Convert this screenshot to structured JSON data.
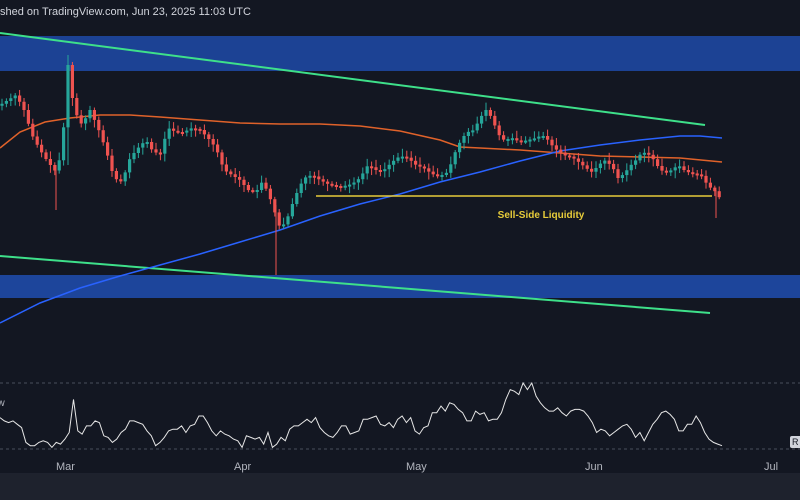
{
  "header": {
    "text": "shed on TradingView.com, Jun 23, 2025 11:03 UTC"
  },
  "oscillator": {
    "label_fragment": "ew",
    "price_tag_fragment": "R"
  },
  "colors": {
    "background": "#131722",
    "up_candle": "#26a69a",
    "down_candle": "#ef5350",
    "ma_orange": "#e0622a",
    "ma_blue": "#2962ff",
    "channel_green": "#3ee08a",
    "zone_blue": "#1f4aa8",
    "liquidity_line": "#e7cc3a",
    "rsi_line": "#e6e6e6"
  },
  "chart_data": {
    "type": "candlestick",
    "x_axis": {
      "ticks": [
        "Mar",
        "Apr",
        "May",
        "Jun",
        "Jul"
      ]
    },
    "annotations": [
      {
        "text": "Sell-Side Liquidity",
        "kind": "horizontal-level"
      }
    ],
    "zones": [
      "upper-supply-zone",
      "lower-demand-zone"
    ],
    "indicators": [
      "moving-average-orange",
      "moving-average-blue",
      "descending-channel",
      "oscillator"
    ],
    "oscillator": {
      "values": [
        49,
        47,
        46,
        47,
        45,
        43,
        34,
        32,
        32,
        34,
        35,
        34,
        31,
        34,
        33,
        36,
        40,
        60,
        41,
        39,
        44,
        44,
        47,
        46,
        38,
        37,
        34,
        36,
        40,
        42,
        47,
        47,
        46,
        45,
        41,
        38,
        32,
        34,
        37,
        41,
        42,
        42,
        44,
        40,
        44,
        45,
        50,
        50,
        46,
        41,
        38,
        41,
        39,
        38,
        36,
        35,
        31,
        38,
        37,
        36,
        37,
        33,
        40,
        31,
        33,
        37,
        35,
        42,
        44,
        44,
        46,
        48,
        46,
        49,
        43,
        40,
        38,
        37,
        40,
        44,
        44,
        39,
        40,
        41,
        48,
        48,
        49,
        50,
        45,
        44,
        46,
        43,
        48,
        50,
        46,
        49,
        41,
        39,
        43,
        44,
        52,
        52,
        56,
        53,
        58,
        57,
        54,
        52,
        47,
        47,
        53,
        51,
        52,
        47,
        48,
        48,
        52,
        60,
        66,
        65,
        63,
        70,
        66,
        70,
        62,
        58,
        55,
        53,
        53,
        55,
        52,
        50,
        53,
        54,
        54,
        53,
        50,
        46,
        40,
        42,
        41,
        38,
        40,
        42,
        44,
        45,
        42,
        37,
        40,
        35,
        40,
        45,
        48,
        52,
        53,
        51,
        48,
        41,
        41,
        45,
        45,
        50,
        46,
        40,
        36,
        34,
        33,
        32
      ]
    }
  }
}
